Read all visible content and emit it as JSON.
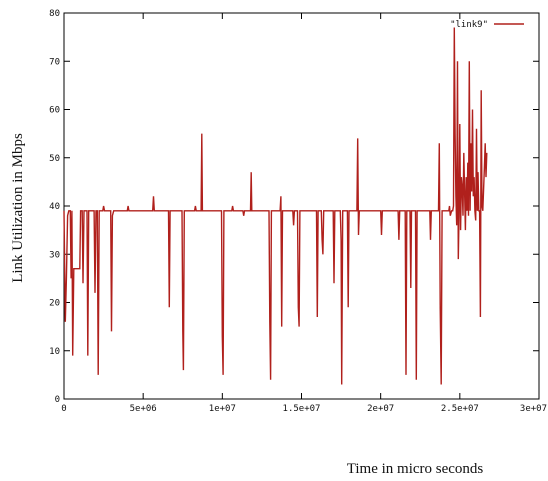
{
  "chart_data": {
    "type": "line",
    "title": "",
    "xlabel": "Time in micro seconds",
    "ylabel": "Link Utilization in Mbps",
    "xlim": [
      0,
      30000000
    ],
    "ylim": [
      0,
      80
    ],
    "x_ticks": [
      {
        "value": 0,
        "label": "0"
      },
      {
        "value": 5000000,
        "label": "5e+06"
      },
      {
        "value": 10000000,
        "label": "1e+07"
      },
      {
        "value": 15000000,
        "label": "1.5e+07"
      },
      {
        "value": 20000000,
        "label": "2e+07"
      },
      {
        "value": 25000000,
        "label": "2.5e+07"
      },
      {
        "value": 30000000,
        "label": "3e+07"
      }
    ],
    "y_ticks": [
      {
        "value": 0,
        "label": "0"
      },
      {
        "value": 10,
        "label": "10"
      },
      {
        "value": 20,
        "label": "20"
      },
      {
        "value": 30,
        "label": "30"
      },
      {
        "value": 40,
        "label": "40"
      },
      {
        "value": 50,
        "label": "50"
      },
      {
        "value": 60,
        "label": "60"
      },
      {
        "value": 70,
        "label": "70"
      },
      {
        "value": 80,
        "label": "80"
      }
    ],
    "legend_position": "top-right",
    "grid": false,
    "series": [
      {
        "name": "\"link9\"",
        "color": "#b0201c",
        "points": [
          [
            0,
            39
          ],
          [
            80000,
            16
          ],
          [
            150000,
            25
          ],
          [
            230000,
            38
          ],
          [
            300000,
            39
          ],
          [
            400000,
            39
          ],
          [
            450000,
            25
          ],
          [
            500000,
            39
          ],
          [
            550000,
            9
          ],
          [
            620000,
            27
          ],
          [
            750000,
            27
          ],
          [
            900000,
            27
          ],
          [
            1000000,
            27
          ],
          [
            1050000,
            39
          ],
          [
            1150000,
            39
          ],
          [
            1200000,
            24
          ],
          [
            1260000,
            39
          ],
          [
            1450000,
            39
          ],
          [
            1500000,
            9
          ],
          [
            1560000,
            39
          ],
          [
            1900000,
            39
          ],
          [
            1960000,
            22
          ],
          [
            2020000,
            39
          ],
          [
            2100000,
            39
          ],
          [
            2160000,
            5
          ],
          [
            2220000,
            39
          ],
          [
            2450000,
            39
          ],
          [
            2500000,
            40
          ],
          [
            2560000,
            39
          ],
          [
            2950000,
            39
          ],
          [
            3000000,
            14
          ],
          [
            3060000,
            38
          ],
          [
            3140000,
            39
          ],
          [
            4000000,
            39
          ],
          [
            4050000,
            40
          ],
          [
            4100000,
            39
          ],
          [
            5000000,
            39
          ],
          [
            5600000,
            39
          ],
          [
            5650000,
            42
          ],
          [
            5700000,
            39
          ],
          [
            6600000,
            39
          ],
          [
            6650000,
            19
          ],
          [
            6700000,
            39
          ],
          [
            7450000,
            39
          ],
          [
            7500000,
            14
          ],
          [
            7540000,
            6
          ],
          [
            7600000,
            39
          ],
          [
            8250000,
            39
          ],
          [
            8300000,
            40
          ],
          [
            8350000,
            39
          ],
          [
            8660000,
            39
          ],
          [
            8700000,
            55
          ],
          [
            8740000,
            39
          ],
          [
            9950000,
            39
          ],
          [
            10000000,
            13
          ],
          [
            10050000,
            5
          ],
          [
            10100000,
            39
          ],
          [
            10600000,
            39
          ],
          [
            10650000,
            40
          ],
          [
            10700000,
            39
          ],
          [
            11300000,
            39
          ],
          [
            11350000,
            38
          ],
          [
            11400000,
            39
          ],
          [
            11780000,
            39
          ],
          [
            11820000,
            47
          ],
          [
            11860000,
            39
          ],
          [
            12950000,
            39
          ],
          [
            13000000,
            16
          ],
          [
            13050000,
            4
          ],
          [
            13100000,
            39
          ],
          [
            13650000,
            39
          ],
          [
            13700000,
            42
          ],
          [
            13750000,
            15
          ],
          [
            13800000,
            39
          ],
          [
            14450000,
            39
          ],
          [
            14500000,
            36
          ],
          [
            14550000,
            39
          ],
          [
            14750000,
            39
          ],
          [
            14800000,
            19
          ],
          [
            14850000,
            15
          ],
          [
            14900000,
            39
          ],
          [
            15950000,
            39
          ],
          [
            16000000,
            17
          ],
          [
            16050000,
            39
          ],
          [
            16250000,
            39
          ],
          [
            16300000,
            33
          ],
          [
            16350000,
            30
          ],
          [
            16400000,
            39
          ],
          [
            17000000,
            39
          ],
          [
            17050000,
            24
          ],
          [
            17100000,
            39
          ],
          [
            17450000,
            39
          ],
          [
            17500000,
            33
          ],
          [
            17540000,
            3
          ],
          [
            17600000,
            39
          ],
          [
            17900000,
            39
          ],
          [
            17950000,
            19
          ],
          [
            18000000,
            39
          ],
          [
            18500000,
            39
          ],
          [
            18550000,
            54
          ],
          [
            18600000,
            34
          ],
          [
            18650000,
            39
          ],
          [
            19450000,
            39
          ],
          [
            20000000,
            39
          ],
          [
            20050000,
            34
          ],
          [
            20100000,
            39
          ],
          [
            21100000,
            39
          ],
          [
            21150000,
            33
          ],
          [
            21200000,
            39
          ],
          [
            21550000,
            39
          ],
          [
            21600000,
            5
          ],
          [
            21650000,
            39
          ],
          [
            21850000,
            39
          ],
          [
            21900000,
            23
          ],
          [
            21950000,
            39
          ],
          [
            22200000,
            39
          ],
          [
            22250000,
            4
          ],
          [
            22300000,
            39
          ],
          [
            23100000,
            39
          ],
          [
            23150000,
            33
          ],
          [
            23200000,
            39
          ],
          [
            23650000,
            39
          ],
          [
            23700000,
            53
          ],
          [
            23760000,
            19
          ],
          [
            23820000,
            3
          ],
          [
            23880000,
            39
          ],
          [
            24300000,
            39
          ],
          [
            24350000,
            40
          ],
          [
            24400000,
            38
          ],
          [
            24480000,
            39
          ],
          [
            24550000,
            39
          ],
          [
            24600000,
            40
          ],
          [
            24650000,
            77
          ],
          [
            24700000,
            55
          ],
          [
            24750000,
            42
          ],
          [
            24800000,
            36
          ],
          [
            24850000,
            70
          ],
          [
            24900000,
            29
          ],
          [
            24950000,
            38
          ],
          [
            25000000,
            57
          ],
          [
            25050000,
            35
          ],
          [
            25100000,
            46
          ],
          [
            25150000,
            44
          ],
          [
            25200000,
            38
          ],
          [
            25250000,
            51
          ],
          [
            25300000,
            43
          ],
          [
            25350000,
            35
          ],
          [
            25400000,
            46
          ],
          [
            25450000,
            39
          ],
          [
            25500000,
            49
          ],
          [
            25550000,
            38
          ],
          [
            25600000,
            70
          ],
          [
            25650000,
            39
          ],
          [
            25700000,
            53
          ],
          [
            25750000,
            43
          ],
          [
            25800000,
            60
          ],
          [
            25850000,
            42
          ],
          [
            25900000,
            46
          ],
          [
            25950000,
            39
          ],
          [
            26000000,
            37
          ],
          [
            26050000,
            56
          ],
          [
            26100000,
            39
          ],
          [
            26150000,
            47
          ],
          [
            26200000,
            39
          ],
          [
            26250000,
            39
          ],
          [
            26300000,
            17
          ],
          [
            26350000,
            64
          ],
          [
            26400000,
            40
          ],
          [
            26450000,
            39
          ],
          [
            26550000,
            48
          ],
          [
            26600000,
            53
          ],
          [
            26650000,
            46
          ],
          [
            26700000,
            51
          ]
        ]
      }
    ]
  }
}
